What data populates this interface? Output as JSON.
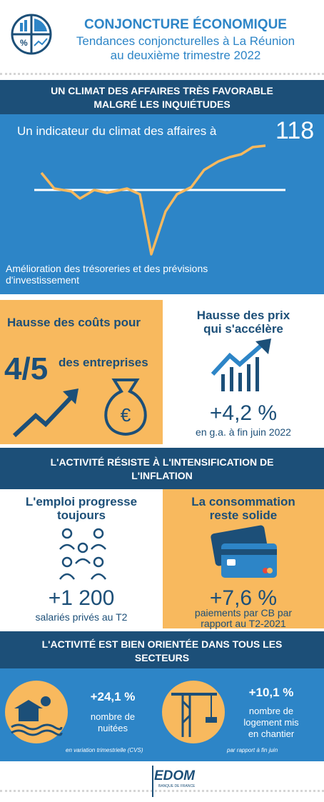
{
  "header": {
    "title": "CONJONCTURE ÉCONOMIQUE",
    "subtitle": [
      "Tendances conjoncturelles à La Réunion",
      "au deuxième trimestre 2022"
    ]
  },
  "climate": {
    "heading": [
      "UN CLIMAT DES AFFAIRES TRÈS FAVORABLE",
      "MALGRÉ LES INQUIÉTUDES"
    ],
    "indicator_label": "Un indicateur du climat des affaires à",
    "indicator_value": "118",
    "note": [
      "Amélioration des trésoreries et des prévisions",
      "d'investissement"
    ]
  },
  "costs": {
    "title": "Hausse des coûts pour",
    "share": "4/5",
    "subject": "des entreprises"
  },
  "prices": {
    "title": [
      "Hausse des prix",
      "qui s'accélère"
    ],
    "value": "+4,2 %",
    "note": "en g.a. à fin juin 2022"
  },
  "activity": {
    "heading": [
      "L'ACTIVITÉ RÉSISTE À L'INTENSIFICATION DE",
      "L'INFLATION"
    ]
  },
  "employment": {
    "title": [
      "L'emploi progresse",
      "toujours"
    ],
    "value": "+1 200",
    "note": "salariés privés au T2"
  },
  "consumption": {
    "title": [
      "La consommation",
      "reste solide"
    ],
    "value": "+7,6 %",
    "note": [
      "paiements par CB par",
      "rapport au T2-2021"
    ]
  },
  "sectors": {
    "heading": [
      "L'ACTIVITÉ EST BIEN ORIENTÉE DANS TOUS LES",
      "SECTEURS"
    ],
    "tourism": {
      "value": "+24,1 %",
      "label": [
        "nombre de",
        "nuitées"
      ],
      "footnote": "en variation trimestrielle (CVS)"
    },
    "construction": {
      "value": "+10,1 %",
      "label": [
        "nombre de",
        "logement mis",
        "en chantier"
      ],
      "footnote": "par rapport à fin juin"
    }
  },
  "footer": {
    "logo": "EDOM",
    "sublogo": "BANQUE DE FRANCE"
  }
}
